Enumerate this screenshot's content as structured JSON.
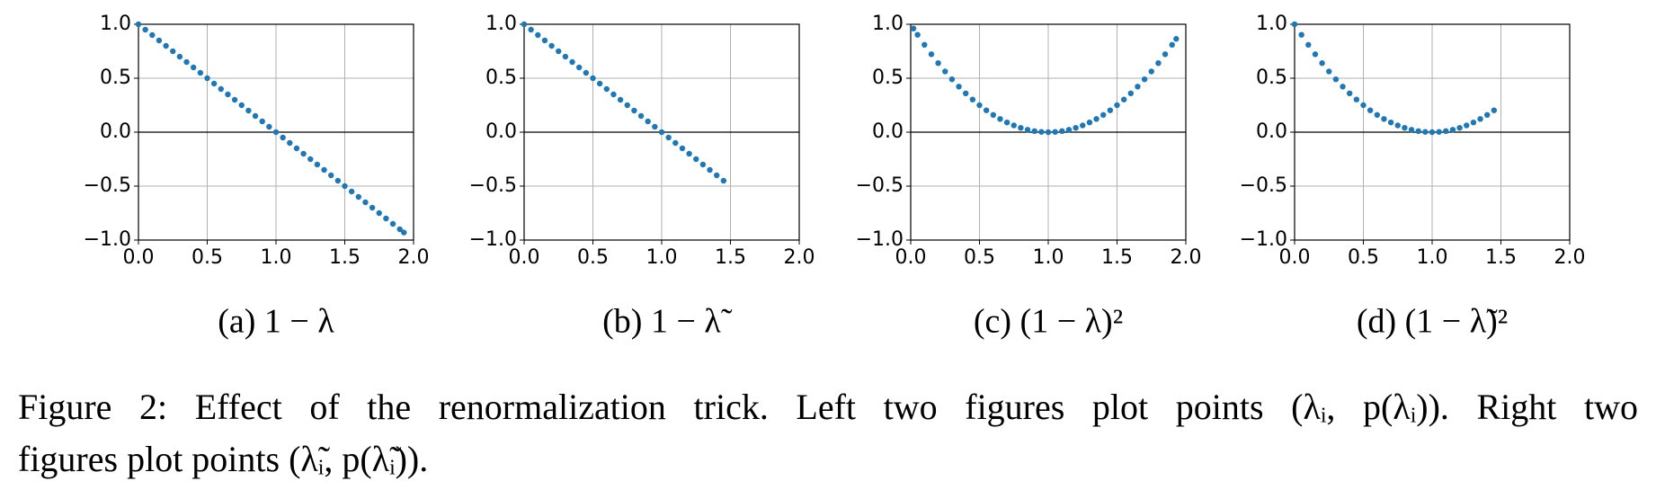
{
  "chart_data": [
    {
      "type": "scatter",
      "caption": "(a) 1 − λ",
      "color": "#1f77b4",
      "grid": true,
      "hline": 0,
      "xlim": [
        0,
        2
      ],
      "ylim": [
        -1,
        1
      ],
      "xticks": [
        {
          "value": 0,
          "label": "0.0"
        },
        {
          "value": 0.5,
          "label": "0.5"
        },
        {
          "value": 1,
          "label": "1.0"
        },
        {
          "value": 1.5,
          "label": "1.5"
        },
        {
          "value": 2,
          "label": "2.0"
        }
      ],
      "yticks": [
        {
          "value": -1,
          "label": "−1.0"
        },
        {
          "value": -0.5,
          "label": "−0.5"
        },
        {
          "value": 0,
          "label": "0.0"
        },
        {
          "value": 0.5,
          "label": "0.5"
        },
        {
          "value": 1,
          "label": "1.0"
        }
      ],
      "x": [
        0,
        0.05,
        0.1,
        0.15,
        0.2,
        0.25,
        0.3,
        0.35,
        0.4,
        0.45,
        0.5,
        0.55,
        0.6,
        0.65,
        0.7,
        0.75,
        0.8,
        0.85,
        0.9,
        0.95,
        1,
        1.05,
        1.1,
        1.15,
        1.2,
        1.25,
        1.3,
        1.35,
        1.4,
        1.45,
        1.5,
        1.55,
        1.6,
        1.65,
        1.7,
        1.75,
        1.8,
        1.85,
        1.9,
        1.93
      ],
      "values": [
        1,
        0.95,
        0.9,
        0.85,
        0.8,
        0.75,
        0.7,
        0.65,
        0.6,
        0.55,
        0.5,
        0.45,
        0.4,
        0.35,
        0.3,
        0.25,
        0.2,
        0.15,
        0.1,
        0.05,
        0,
        -0.05,
        -0.1,
        -0.15,
        -0.2,
        -0.25,
        -0.3,
        -0.35,
        -0.4,
        -0.45,
        -0.5,
        -0.55,
        -0.6,
        -0.65,
        -0.7,
        -0.75,
        -0.8,
        -0.85,
        -0.9,
        -0.93
      ]
    },
    {
      "type": "scatter",
      "caption": "(b) 1 − λ̃",
      "color": "#1f77b4",
      "grid": true,
      "hline": 0,
      "xlim": [
        0,
        2
      ],
      "ylim": [
        -1,
        1
      ],
      "xticks": [
        {
          "value": 0,
          "label": "0.0"
        },
        {
          "value": 0.5,
          "label": "0.5"
        },
        {
          "value": 1,
          "label": "1.0"
        },
        {
          "value": 1.5,
          "label": "1.5"
        },
        {
          "value": 2,
          "label": "2.0"
        }
      ],
      "yticks": [
        {
          "value": -1,
          "label": "−1.0"
        },
        {
          "value": -0.5,
          "label": "−0.5"
        },
        {
          "value": 0,
          "label": "0.0"
        },
        {
          "value": 0.5,
          "label": "0.5"
        },
        {
          "value": 1,
          "label": "1.0"
        }
      ],
      "x": [
        0,
        0.05,
        0.1,
        0.15,
        0.2,
        0.25,
        0.3,
        0.35,
        0.4,
        0.45,
        0.5,
        0.55,
        0.6,
        0.65,
        0.7,
        0.75,
        0.8,
        0.85,
        0.9,
        0.95,
        1,
        1.05,
        1.1,
        1.15,
        1.2,
        1.25,
        1.3,
        1.35,
        1.4,
        1.45
      ],
      "values": [
        1,
        0.95,
        0.9,
        0.85,
        0.8,
        0.75,
        0.7,
        0.65,
        0.6,
        0.55,
        0.5,
        0.45,
        0.4,
        0.35,
        0.3,
        0.25,
        0.2,
        0.15,
        0.1,
        0.05,
        0,
        -0.05,
        -0.1,
        -0.15,
        -0.2,
        -0.25,
        -0.3,
        -0.35,
        -0.4,
        -0.45
      ]
    },
    {
      "type": "scatter",
      "caption": "(c) (1 − λ)²",
      "color": "#1f77b4",
      "grid": true,
      "hline": 0,
      "xlim": [
        0,
        2
      ],
      "ylim": [
        -1,
        1
      ],
      "xticks": [
        {
          "value": 0,
          "label": "0.0"
        },
        {
          "value": 0.5,
          "label": "0.5"
        },
        {
          "value": 1,
          "label": "1.0"
        },
        {
          "value": 1.5,
          "label": "1.5"
        },
        {
          "value": 2,
          "label": "2.0"
        }
      ],
      "yticks": [
        {
          "value": -1,
          "label": "−1.0"
        },
        {
          "value": -0.5,
          "label": "−0.5"
        },
        {
          "value": 0,
          "label": "0.0"
        },
        {
          "value": 0.5,
          "label": "0.5"
        },
        {
          "value": 1,
          "label": "1.0"
        }
      ],
      "x": [
        0.02,
        0.05,
        0.1,
        0.15,
        0.2,
        0.25,
        0.3,
        0.35,
        0.4,
        0.45,
        0.5,
        0.55,
        0.6,
        0.65,
        0.7,
        0.75,
        0.8,
        0.85,
        0.9,
        0.95,
        1,
        1.05,
        1.1,
        1.15,
        1.2,
        1.25,
        1.3,
        1.35,
        1.4,
        1.45,
        1.5,
        1.55,
        1.6,
        1.65,
        1.7,
        1.75,
        1.8,
        1.85,
        1.9,
        1.93
      ],
      "values": [
        0.9604,
        0.9025,
        0.81,
        0.7225,
        0.64,
        0.5625,
        0.49,
        0.4225,
        0.36,
        0.3025,
        0.25,
        0.2025,
        0.16,
        0.1225,
        0.09,
        0.0625,
        0.04,
        0.0225,
        0.01,
        0.0025,
        0,
        0.0025,
        0.01,
        0.0225,
        0.04,
        0.0625,
        0.09,
        0.1225,
        0.16,
        0.2025,
        0.25,
        0.3025,
        0.36,
        0.4225,
        0.49,
        0.5625,
        0.64,
        0.7225,
        0.81,
        0.8649
      ]
    },
    {
      "type": "scatter",
      "caption": "(d) (1 − λ̃)²",
      "color": "#1f77b4",
      "grid": true,
      "hline": 0,
      "xlim": [
        0,
        2
      ],
      "ylim": [
        -1,
        1
      ],
      "xticks": [
        {
          "value": 0,
          "label": "0.0"
        },
        {
          "value": 0.5,
          "label": "0.5"
        },
        {
          "value": 1,
          "label": "1.0"
        },
        {
          "value": 1.5,
          "label": "1.5"
        },
        {
          "value": 2,
          "label": "2.0"
        }
      ],
      "yticks": [
        {
          "value": -1,
          "label": "−1.0"
        },
        {
          "value": -0.5,
          "label": "−0.5"
        },
        {
          "value": 0,
          "label": "0.0"
        },
        {
          "value": 0.5,
          "label": "0.5"
        },
        {
          "value": 1,
          "label": "1.0"
        }
      ],
      "x": [
        0,
        0.05,
        0.1,
        0.15,
        0.2,
        0.25,
        0.3,
        0.35,
        0.4,
        0.45,
        0.5,
        0.55,
        0.6,
        0.65,
        0.7,
        0.75,
        0.8,
        0.85,
        0.9,
        0.95,
        1,
        1.05,
        1.1,
        1.15,
        1.2,
        1.25,
        1.3,
        1.35,
        1.4,
        1.45
      ],
      "values": [
        1,
        0.9025,
        0.81,
        0.7225,
        0.64,
        0.5625,
        0.49,
        0.4225,
        0.36,
        0.3025,
        0.25,
        0.2025,
        0.16,
        0.1225,
        0.09,
        0.0625,
        0.04,
        0.0225,
        0.01,
        0.0025,
        0,
        0.0025,
        0.01,
        0.0225,
        0.04,
        0.0625,
        0.09,
        0.1225,
        0.16,
        0.2025
      ]
    }
  ],
  "figure_caption": [
    "Figure 2: Effect of the renormalization trick. Left two figures plot points (λᵢ, p(λᵢ)). Right two",
    "figures plot points (λ̃ᵢ, p(λ̃ᵢ))."
  ]
}
